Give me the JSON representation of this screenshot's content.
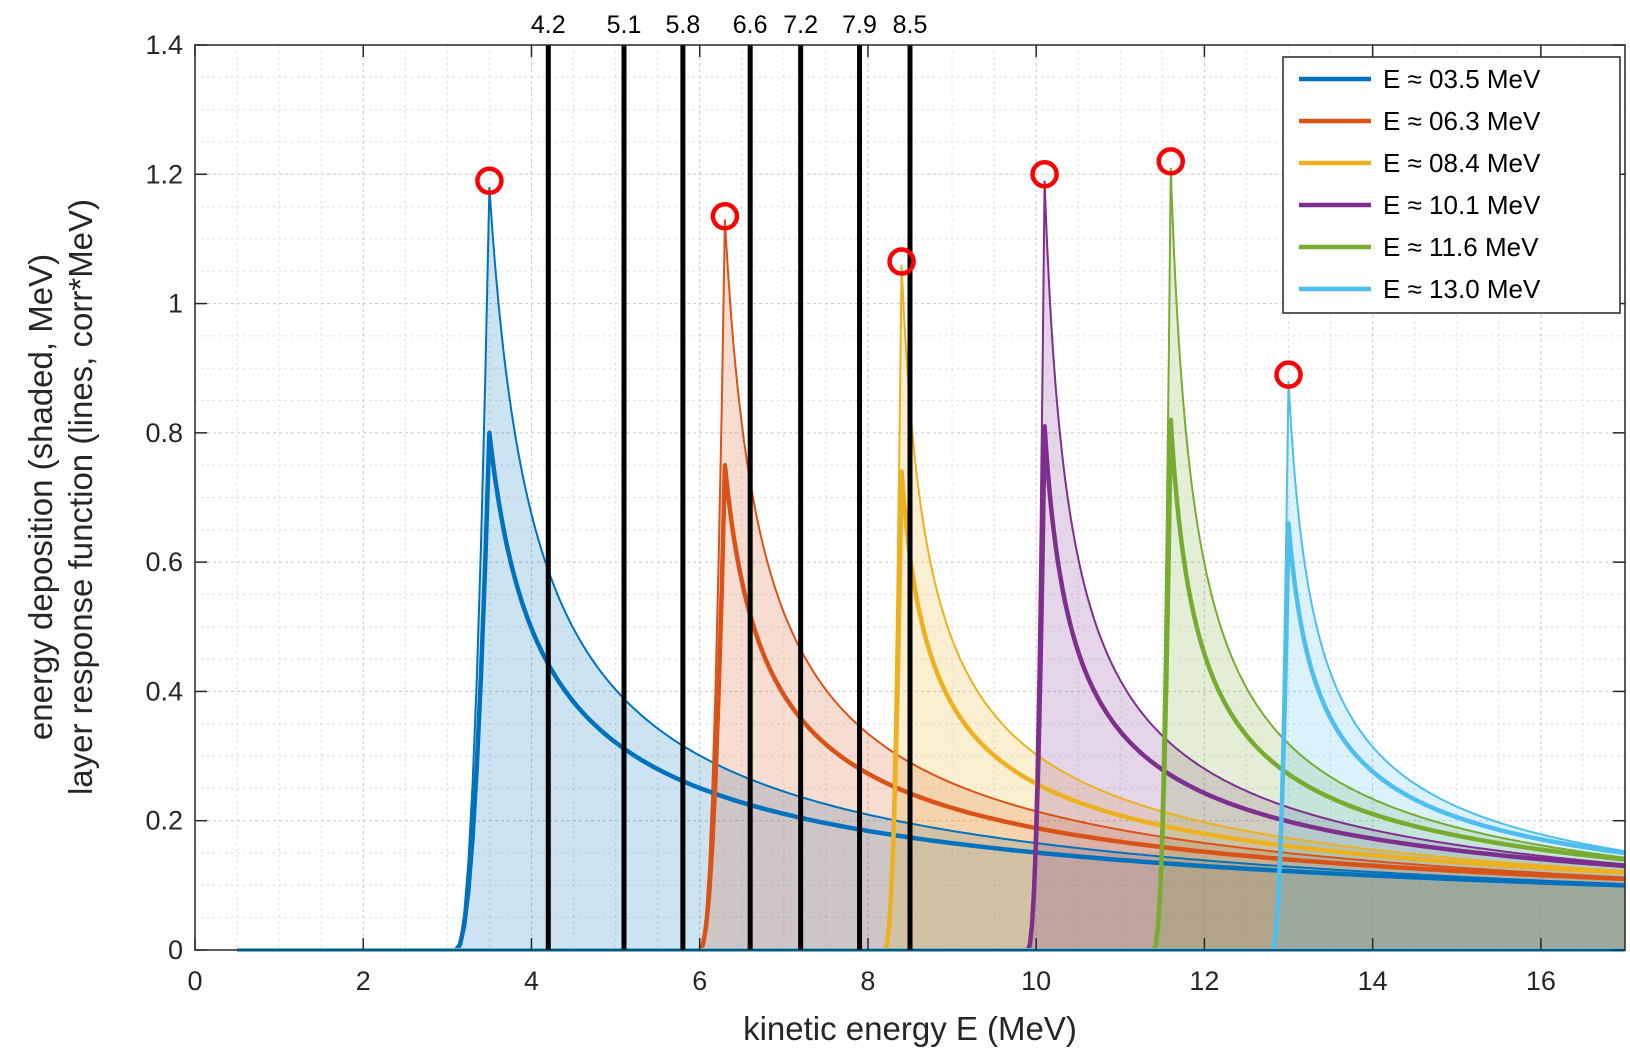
{
  "chart_data": {
    "type": "line",
    "title": "",
    "xlabel": "kinetic energy E (MeV)",
    "ylabel_line1": "energy deposition (shaded, MeV)",
    "ylabel_line2": "layer response function (lines, corr*MeV)",
    "xlim": [
      0,
      17
    ],
    "ylim": [
      0,
      1.4
    ],
    "xticks": [
      0,
      2,
      4,
      6,
      8,
      10,
      12,
      14,
      16
    ],
    "xtick_labels": [
      "0",
      "2",
      "4",
      "6",
      "8",
      "10",
      "12",
      "14",
      "16"
    ],
    "yticks": [
      0,
      0.2,
      0.4,
      0.6,
      0.8,
      1.0,
      1.2,
      1.4
    ],
    "ytick_labels": [
      "0",
      "0.2",
      "0.4",
      "0.6",
      "0.8",
      "1",
      "1.2",
      "1.4"
    ],
    "grid": true,
    "legend_position": "top-right",
    "vertical_lines": [
      {
        "x": 4.2,
        "label": "4.2"
      },
      {
        "x": 5.1,
        "label": "5.1"
      },
      {
        "x": 5.8,
        "label": "5.8"
      },
      {
        "x": 6.6,
        "label": "6.6"
      },
      {
        "x": 7.2,
        "label": "7.2"
      },
      {
        "x": 7.9,
        "label": "7.9"
      },
      {
        "x": 8.5,
        "label": "8.5"
      }
    ],
    "series": [
      {
        "name": "E ≈ 03.5 MeV",
        "color": "#0072BD",
        "onset": 3.1,
        "peak_x": 3.5,
        "response_peak": 0.8,
        "deposition_peak": 1.18,
        "tail_at_17": 0.1
      },
      {
        "name": "E ≈ 06.3 MeV",
        "color": "#D95319",
        "onset": 6.0,
        "peak_x": 6.3,
        "response_peak": 0.75,
        "deposition_peak": 1.13,
        "tail_at_17": 0.11
      },
      {
        "name": "E ≈ 08.4 MeV",
        "color": "#EDB120",
        "onset": 8.2,
        "peak_x": 8.4,
        "response_peak": 0.74,
        "deposition_peak": 1.06,
        "tail_at_17": 0.12
      },
      {
        "name": "E ≈ 10.1 MeV",
        "color": "#7E2F8E",
        "onset": 9.9,
        "peak_x": 10.1,
        "response_peak": 0.81,
        "deposition_peak": 1.19,
        "tail_at_17": 0.13
      },
      {
        "name": "E ≈ 11.6 MeV",
        "color": "#77AC30",
        "onset": 11.4,
        "peak_x": 11.6,
        "response_peak": 0.82,
        "deposition_peak": 1.21,
        "tail_at_17": 0.14
      },
      {
        "name": "E ≈ 13.0 MeV",
        "color": "#4DBEEE",
        "onset": 12.8,
        "peak_x": 13.0,
        "response_peak": 0.66,
        "deposition_peak": 0.88,
        "tail_at_17": 0.15
      }
    ],
    "peak_markers": [
      {
        "x": 3.5,
        "y": 1.19
      },
      {
        "x": 6.3,
        "y": 1.135
      },
      {
        "x": 8.4,
        "y": 1.065
      },
      {
        "x": 10.1,
        "y": 1.2
      },
      {
        "x": 11.6,
        "y": 1.22
      },
      {
        "x": 13.0,
        "y": 0.89
      }
    ],
    "baseline_range": [
      0.5,
      17
    ]
  },
  "colors": {
    "marker": "#FF0000",
    "vline": "#000000",
    "axis": "#262626",
    "grid": "#d9d9d9"
  }
}
